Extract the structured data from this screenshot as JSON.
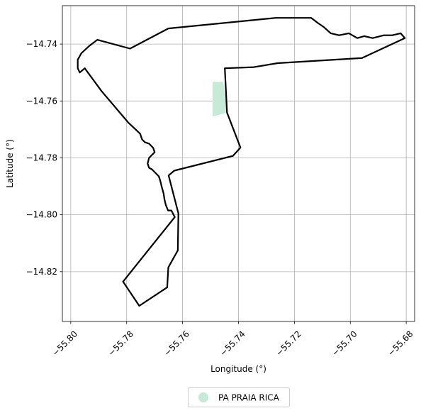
{
  "chart_data": {
    "type": "map",
    "xlabel": "Longitude (°)",
    "ylabel": "Latitude (°)",
    "xlim": [
      -55.803,
      -55.677
    ],
    "ylim": [
      -14.8375,
      -14.7265
    ],
    "grid": true,
    "x_ticks": [
      -55.8,
      -55.78,
      -55.76,
      -55.74,
      -55.72,
      -55.7,
      -55.68
    ],
    "x_tick_labels": [
      "−55.80",
      "−55.78",
      "−55.76",
      "−55.74",
      "−55.72",
      "−55.70",
      "−55.68"
    ],
    "y_ticks": [
      -14.74,
      -14.76,
      -14.78,
      -14.8,
      -14.82
    ],
    "y_tick_labels": [
      "−14.74",
      "−14.76",
      "−14.78",
      "−14.80",
      "−14.82"
    ],
    "legend": {
      "placement": "bottom-center",
      "entries": [
        {
          "label": "PA PRAIA RICA",
          "color": "#c6e9d8"
        }
      ]
    },
    "filled_area": {
      "name": "PA PRAIA RICA",
      "color": "#c6e9d8",
      "points": [
        [
          -55.7493,
          -14.7533
        ],
        [
          -55.7455,
          -14.7533
        ],
        [
          -55.7441,
          -14.7641
        ],
        [
          -55.7493,
          -14.7655
        ]
      ]
    },
    "boundary": {
      "color": "#000000",
      "points": [
        [
          -55.7788,
          -14.7416
        ],
        [
          -55.7651,
          -14.7345
        ],
        [
          -55.7267,
          -14.7308
        ],
        [
          -55.714,
          -14.7308
        ],
        [
          -55.7117,
          -14.7325
        ],
        [
          -55.7095,
          -14.734
        ],
        [
          -55.707,
          -14.7362
        ],
        [
          -55.704,
          -14.7369
        ],
        [
          -55.7005,
          -14.7362
        ],
        [
          -55.6975,
          -14.7379
        ],
        [
          -55.695,
          -14.7372
        ],
        [
          -55.692,
          -14.7379
        ],
        [
          -55.688,
          -14.7369
        ],
        [
          -55.685,
          -14.7369
        ],
        [
          -55.682,
          -14.7362
        ],
        [
          -55.6805,
          -14.7379
        ],
        [
          -55.6958,
          -14.7449
        ],
        [
          -55.726,
          -14.7467
        ],
        [
          -55.7345,
          -14.7481
        ],
        [
          -55.7449,
          -14.7485
        ],
        [
          -55.7441,
          -14.7641
        ],
        [
          -55.7393,
          -14.7764
        ],
        [
          -55.742,
          -14.7793
        ],
        [
          -55.763,
          -14.7845
        ],
        [
          -55.765,
          -14.7862
        ],
        [
          -55.7615,
          -14.7995
        ],
        [
          -55.7617,
          -14.8125
        ],
        [
          -55.7651,
          -14.8185
        ],
        [
          -55.7655,
          -14.8255
        ],
        [
          -55.7755,
          -14.832
        ],
        [
          -55.7813,
          -14.8235
        ],
        [
          -55.7628,
          -14.8008
        ],
        [
          -55.764,
          -14.7985
        ],
        [
          -55.7652,
          -14.7985
        ],
        [
          -55.766,
          -14.7965
        ],
        [
          -55.7665,
          -14.7945
        ],
        [
          -55.7668,
          -14.7925
        ],
        [
          -55.7675,
          -14.79
        ],
        [
          -55.768,
          -14.788
        ],
        [
          -55.7685,
          -14.7865
        ],
        [
          -55.77,
          -14.785
        ],
        [
          -55.771,
          -14.784
        ],
        [
          -55.772,
          -14.7835
        ],
        [
          -55.7725,
          -14.782
        ],
        [
          -55.772,
          -14.78
        ],
        [
          -55.771,
          -14.779
        ],
        [
          -55.77,
          -14.778
        ],
        [
          -55.7705,
          -14.7765
        ],
        [
          -55.772,
          -14.775
        ],
        [
          -55.7735,
          -14.7745
        ],
        [
          -55.7745,
          -14.7735
        ],
        [
          -55.7752,
          -14.7715
        ],
        [
          -55.7795,
          -14.7675
        ],
        [
          -55.789,
          -14.7565
        ],
        [
          -55.795,
          -14.7485
        ],
        [
          -55.7968,
          -14.75
        ],
        [
          -55.7975,
          -14.7485
        ],
        [
          -55.7975,
          -14.7455
        ],
        [
          -55.7962,
          -14.7432
        ],
        [
          -55.7932,
          -14.7405
        ],
        [
          -55.7905,
          -14.7385
        ],
        [
          -55.7788,
          -14.7416
        ]
      ]
    }
  }
}
